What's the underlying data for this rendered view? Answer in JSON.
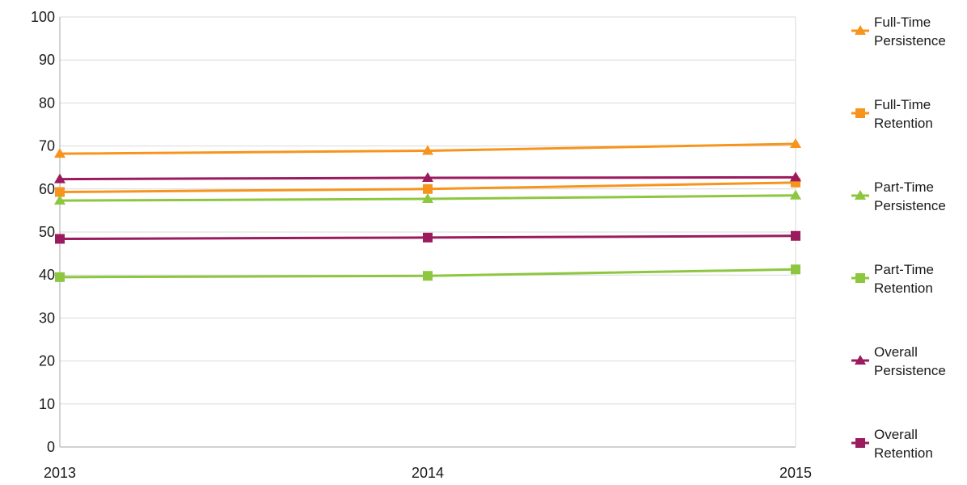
{
  "chart_data": {
    "type": "line",
    "title": "",
    "xlabel": "",
    "ylabel": "",
    "x": [
      "2013",
      "2014",
      "2015"
    ],
    "ylim": [
      0,
      100
    ],
    "yticks": [
      0,
      10,
      20,
      30,
      40,
      50,
      60,
      70,
      80,
      90,
      100
    ],
    "grid": true,
    "legend_position": "right",
    "series": [
      {
        "name": "Full-Time Persistence",
        "legend_lines": [
          "Full-Time",
          "Persistence"
        ],
        "color": "#F7941D",
        "marker": "triangle",
        "values": [
          68.2,
          68.9,
          70.5
        ]
      },
      {
        "name": "Full-Time Retention",
        "legend_lines": [
          "Full-Time",
          "Retention"
        ],
        "color": "#F7941D",
        "marker": "square",
        "values": [
          59.3,
          60.0,
          61.5
        ]
      },
      {
        "name": "Part-Time Persistence",
        "legend_lines": [
          "Part-Time",
          "Persistence"
        ],
        "color": "#8DC63F",
        "marker": "triangle",
        "values": [
          57.3,
          57.7,
          58.5
        ]
      },
      {
        "name": "Part-Time Retention",
        "legend_lines": [
          "Part-Time",
          "Retention"
        ],
        "color": "#8DC63F",
        "marker": "square",
        "values": [
          39.5,
          39.8,
          41.3
        ]
      },
      {
        "name": "Overall Persistence",
        "legend_lines": [
          "Overall",
          "Persistence"
        ],
        "color": "#9B1B5F",
        "marker": "triangle",
        "values": [
          62.3,
          62.6,
          62.7
        ]
      },
      {
        "name": "Overall Retention",
        "legend_lines": [
          "Overall",
          "Retention"
        ],
        "color": "#9B1B5F",
        "marker": "square",
        "values": [
          48.4,
          48.7,
          49.1
        ]
      }
    ]
  }
}
